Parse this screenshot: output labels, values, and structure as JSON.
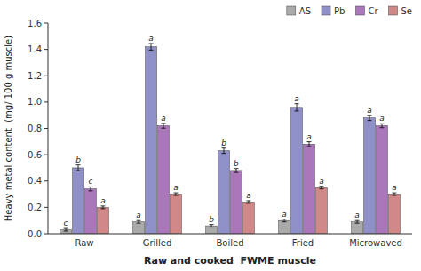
{
  "chart_data": {
    "type": "bar",
    "categories": [
      "Raw",
      "Grilled",
      "Boiled",
      "Fried",
      "Microwaved"
    ],
    "series": [
      {
        "name": "AS",
        "color": "#aaaaaa",
        "values": [
          0.03,
          0.09,
          0.06,
          0.1,
          0.09
        ],
        "errors": [
          0.01,
          0.01,
          0.01,
          0.01,
          0.01
        ],
        "letters": [
          "c",
          "a",
          "b",
          "a",
          "a"
        ]
      },
      {
        "name": "Pb",
        "color": "#9090c8",
        "values": [
          0.5,
          1.42,
          0.63,
          0.96,
          0.88
        ],
        "errors": [
          0.022,
          0.025,
          0.02,
          0.028,
          0.02
        ],
        "letters": [
          "b",
          "a",
          "b",
          "a",
          "a"
        ]
      },
      {
        "name": "Cr",
        "color": "#aa77bb",
        "values": [
          0.34,
          0.82,
          0.48,
          0.68,
          0.82
        ],
        "errors": [
          0.015,
          0.018,
          0.015,
          0.018,
          0.015
        ],
        "letters": [
          "c",
          "a",
          "b",
          "a",
          "a"
        ]
      },
      {
        "name": "Se",
        "color": "#d08888",
        "values": [
          0.2,
          0.3,
          0.24,
          0.35,
          0.3
        ],
        "errors": [
          0.01,
          0.01,
          0.01,
          0.01,
          0.01
        ],
        "letters": [
          "a",
          "a",
          "a",
          "a",
          "a"
        ]
      }
    ],
    "ylim": [
      0.0,
      1.6
    ],
    "yticks": [
      {
        "value": 0.0,
        "label": "0.0"
      },
      0.2,
      0.4,
      0.6,
      0.8,
      {
        "value": 1.0,
        "label": "1.0"
      },
      1.2,
      1.4,
      1.6
    ],
    "ylabel": "Heavy metal content  (mg/ 100 g muscle)",
    "xlabel": "Raw and cooked  FWME muscle",
    "legend": "upper right",
    "grid": false
  }
}
